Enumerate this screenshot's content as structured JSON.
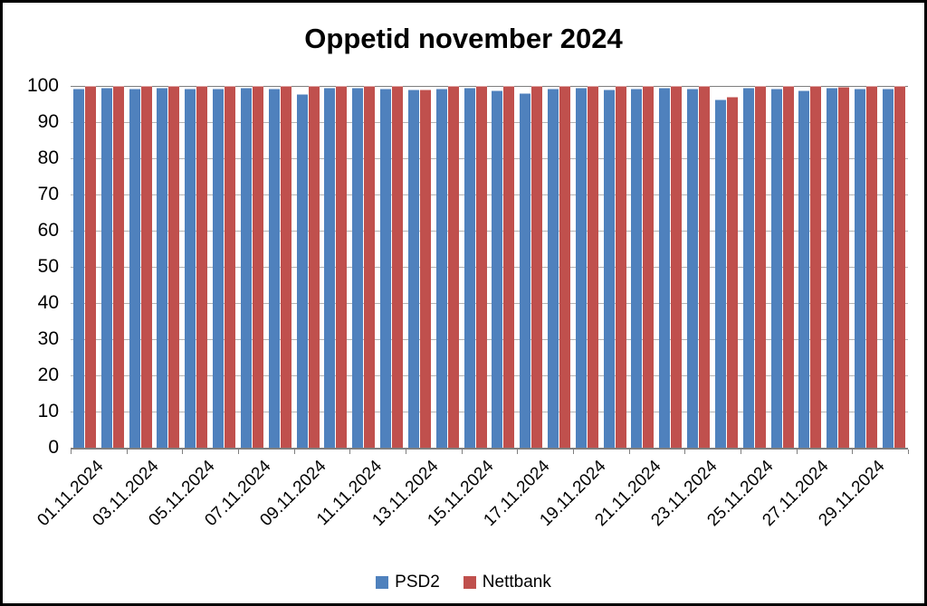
{
  "title": "Oppetid november 2024",
  "colors": {
    "psd2_blue": "#4F81BD",
    "nettbank_red": "#C0504D",
    "gridline": "#b3b3b3",
    "axis": "#7f7f7f",
    "background": "#ffffff",
    "border": "#000000"
  },
  "legend": {
    "items": [
      {
        "label": "PSD2",
        "color": "#4F81BD"
      },
      {
        "label": "Nettbank",
        "color": "#C0504D"
      }
    ],
    "position": "bottom"
  },
  "chart_data": {
    "type": "bar",
    "title": "Oppetid november 2024",
    "xlabel": "",
    "ylabel": "",
    "ylim": [
      0,
      100
    ],
    "y_ticks": [
      0,
      10,
      20,
      30,
      40,
      50,
      60,
      70,
      80,
      90,
      100
    ],
    "grid": "horizontal",
    "legend_position": "bottom",
    "categories": [
      "01.11.2024",
      "02.11.2024",
      "03.11.2024",
      "04.11.2024",
      "05.11.2024",
      "06.11.2024",
      "07.11.2024",
      "08.11.2024",
      "09.11.2024",
      "10.11.2024",
      "11.11.2024",
      "12.11.2024",
      "13.11.2024",
      "14.11.2024",
      "15.11.2024",
      "16.11.2024",
      "17.11.2024",
      "18.11.2024",
      "19.11.2024",
      "20.11.2024",
      "21.11.2024",
      "22.11.2024",
      "23.11.2024",
      "24.11.2024",
      "25.11.2024",
      "26.11.2024",
      "27.11.2024",
      "28.11.2024",
      "29.11.2024",
      "30.11.2024"
    ],
    "x_tick_labels_shown": [
      "01.11.2024",
      "03.11.2024",
      "05.11.2024",
      "07.11.2024",
      "09.11.2024",
      "11.11.2024",
      "13.11.2024",
      "15.11.2024",
      "17.11.2024",
      "19.11.2024",
      "21.11.2024",
      "23.11.2024",
      "25.11.2024",
      "27.11.2024",
      "29.11.2024"
    ],
    "series": [
      {
        "name": "PSD2",
        "color": "#4F81BD",
        "values": [
          99.2,
          99.4,
          99.2,
          99.4,
          99.3,
          99.2,
          99.4,
          99.3,
          97.8,
          99.4,
          99.4,
          99.3,
          99.0,
          99.2,
          99.5,
          98.8,
          98.0,
          99.2,
          99.4,
          99.0,
          99.2,
          99.4,
          99.2,
          96.3,
          99.4,
          99.3,
          98.8,
          99.6,
          99.3,
          99.2
        ]
      },
      {
        "name": "Nettbank",
        "color": "#C0504D",
        "values": [
          100,
          100,
          100,
          100,
          100,
          100,
          100,
          100,
          100,
          100,
          100,
          99.9,
          99.0,
          100,
          100,
          100,
          100,
          100,
          100,
          100,
          100,
          100,
          100,
          97.0,
          100,
          100,
          100,
          99.7,
          100,
          100
        ]
      }
    ]
  }
}
